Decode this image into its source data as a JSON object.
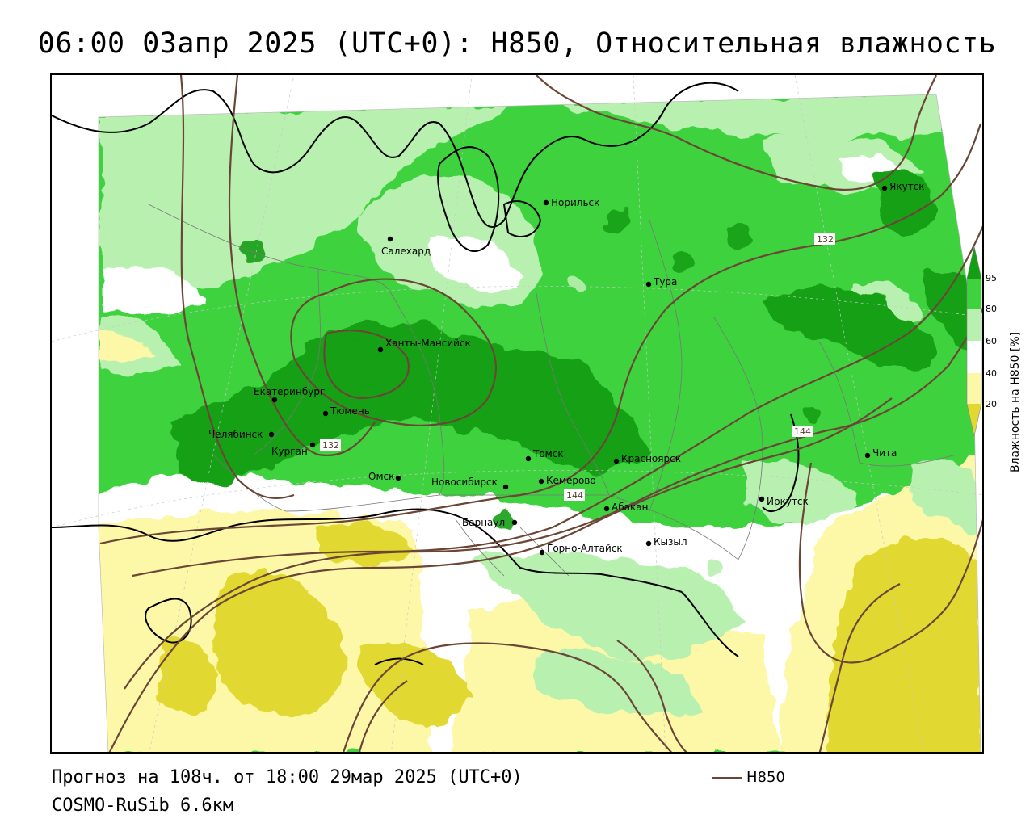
{
  "header": {
    "title": "06:00 03апр 2025 (UTC+0): H850, Относительная влажность"
  },
  "footer": {
    "forecast": "Прогноз на 108ч. от 18:00 29мар 2025 (UTC+0)",
    "model": "COSMO-RuSib 6.6км",
    "legend_label": "H850"
  },
  "colorbar": {
    "title": "Влажность на H850 [%]",
    "ticks": [
      "95",
      "80",
      "60",
      "40",
      "20"
    ],
    "colors": {
      "95": "#12a012",
      "80": "#3ed23e",
      "60": "#b8f0b0",
      "40": "#ffffff",
      "20": "#fdf7a8",
      "below": "#e2d830"
    }
  },
  "map": {
    "cities": [
      {
        "name": "Салехард"
      },
      {
        "name": "Норильск"
      },
      {
        "name": "Якутск"
      },
      {
        "name": "Тура"
      },
      {
        "name": "Ханты-Мансийск"
      },
      {
        "name": "Екатеринбург"
      },
      {
        "name": "Тюмень"
      },
      {
        "name": "Челябинск"
      },
      {
        "name": "Курган"
      },
      {
        "name": "Омск"
      },
      {
        "name": "Новосибирск"
      },
      {
        "name": "Томск"
      },
      {
        "name": "Кемерово"
      },
      {
        "name": "Красноярск"
      },
      {
        "name": "Барнаул"
      },
      {
        "name": "Абакан"
      },
      {
        "name": "Горно-Алтайск"
      },
      {
        "name": "Кызыл"
      },
      {
        "name": "Иркутск"
      },
      {
        "name": "Чита"
      }
    ],
    "isoline_labels": [
      "132",
      "132",
      "144",
      "144"
    ]
  }
}
